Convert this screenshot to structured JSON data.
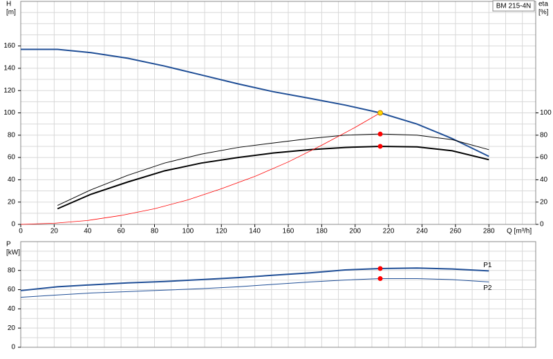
{
  "chart_data": [
    {
      "type": "line",
      "ylabel": [
        "H",
        "[m]"
      ],
      "y2label": [
        "eta",
        "[%]"
      ],
      "xlabel": "Q [m³/h]",
      "annotation": "BM 215-4N",
      "xlim": [
        0,
        308
      ],
      "xticks": [
        0,
        20,
        40,
        60,
        80,
        100,
        120,
        140,
        160,
        180,
        200,
        220,
        240,
        260,
        280
      ],
      "ylim": [
        0,
        200
      ],
      "yticks": [
        0,
        20,
        40,
        60,
        80,
        100,
        120,
        140,
        160
      ],
      "y2lim": [
        0,
        200
      ],
      "y2ticks": [
        0,
        20,
        40,
        60,
        80,
        100
      ],
      "grid": {
        "x_step": 10,
        "y_step": 10
      },
      "series": [
        {
          "color": "#1f4e96",
          "width": 2,
          "x": [
            0,
            22,
            42,
            64,
            86,
            108,
            130,
            151,
            173,
            194,
            215,
            237,
            258,
            280
          ],
          "values": [
            157,
            157,
            154,
            149,
            142,
            134,
            126,
            119,
            113,
            107,
            100,
            90,
            77,
            61
          ]
        },
        {
          "color": "#000000",
          "width": 1,
          "axis": "y2",
          "x": [
            22,
            42,
            64,
            86,
            108,
            130,
            151,
            173,
            194,
            215,
            237,
            258,
            280
          ],
          "values": [
            17,
            31,
            44,
            55,
            63,
            69,
            73,
            77,
            80,
            81,
            80,
            76,
            67
          ]
        },
        {
          "color": "#000000",
          "width": 2,
          "axis": "y2",
          "x": [
            22,
            42,
            64,
            86,
            108,
            130,
            151,
            173,
            194,
            215,
            237,
            258,
            280
          ],
          "values": [
            14,
            27,
            38,
            48,
            55,
            60,
            64,
            67,
            69,
            70,
            69.5,
            66,
            58
          ]
        },
        {
          "color": "#ff0000",
          "width": 0.8,
          "x": [
            0,
            20,
            40,
            60,
            80,
            100,
            120,
            140,
            160,
            180,
            200,
            215
          ],
          "values": [
            0,
            1,
            3.5,
            8,
            14,
            22,
            32,
            43,
            56,
            71,
            87,
            100
          ]
        }
      ],
      "markers": [
        {
          "color": "#ffd700",
          "x": 215,
          "y": 100
        },
        {
          "color": "#ff0000",
          "axis": "y2",
          "x": 215,
          "y": 81
        },
        {
          "color": "#ff0000",
          "axis": "y2",
          "x": 215,
          "y": 70
        }
      ]
    },
    {
      "type": "line",
      "ylabel": [
        "P",
        "[kW]"
      ],
      "xlim": [
        0,
        308
      ],
      "ylim": [
        0,
        110
      ],
      "yticks": [
        0,
        20,
        40,
        60,
        80
      ],
      "grid": {
        "x_step": 10,
        "y_step": 10
      },
      "series": [
        {
          "name": "P1",
          "color": "#1f4e96",
          "width": 2,
          "x": [
            0,
            22,
            42,
            64,
            86,
            108,
            130,
            151,
            173,
            194,
            215,
            237,
            258,
            280
          ],
          "values": [
            59,
            63,
            65,
            67,
            68.5,
            70.5,
            72.5,
            75,
            77.5,
            80.5,
            82,
            82.5,
            81.5,
            79.5
          ]
        },
        {
          "name": "P2",
          "color": "#1f4e96",
          "width": 1,
          "x": [
            0,
            22,
            42,
            64,
            86,
            108,
            130,
            151,
            173,
            194,
            215,
            237,
            258,
            280
          ],
          "values": [
            52,
            54.5,
            56.5,
            58,
            59.5,
            61,
            63,
            65.5,
            68,
            70,
            71.5,
            71.5,
            70.5,
            68
          ]
        }
      ],
      "markers": [
        {
          "color": "#ff0000",
          "x": 215,
          "y": 82
        },
        {
          "color": "#ff0000",
          "x": 215,
          "y": 71.5
        }
      ]
    }
  ]
}
